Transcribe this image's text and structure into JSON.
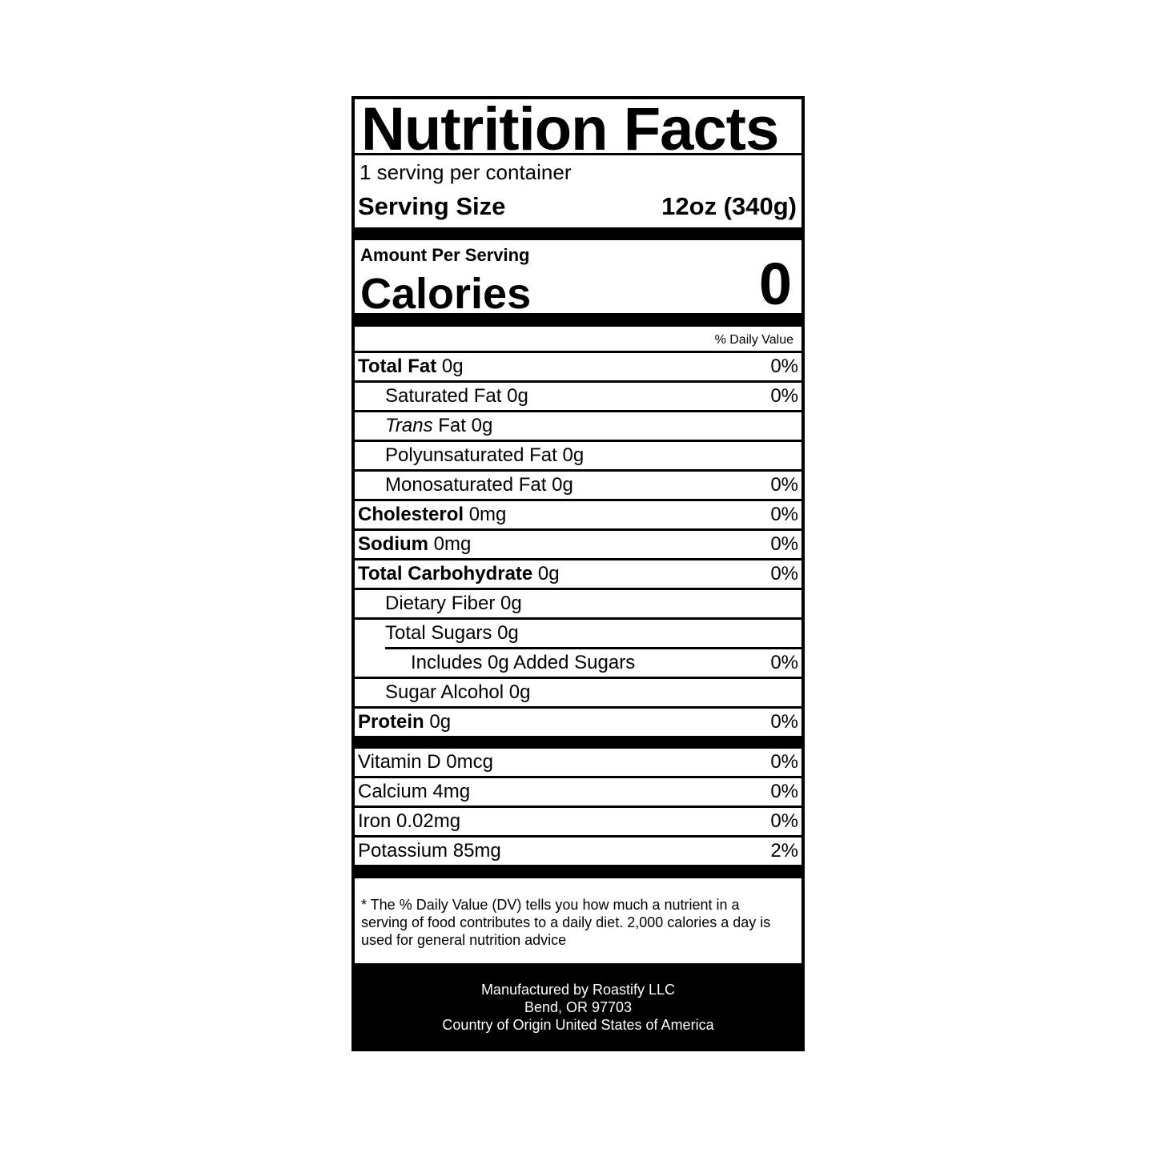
{
  "title": "Nutrition Facts",
  "servings_per_container": "1 serving per container",
  "serving_size": {
    "label": "Serving Size",
    "value": "12oz (340g)"
  },
  "amount_per_serving": "Amount Per Serving",
  "calories": {
    "label": "Calories",
    "value": "0"
  },
  "daily_value_header": "% Daily Value",
  "nutrients": [
    {
      "name": "Total Fat",
      "amount": "0g",
      "dv": "0%"
    },
    {
      "name": "Saturated Fat",
      "amount": "0g",
      "dv": "0%"
    },
    {
      "name": "Trans",
      "name2": "Fat",
      "amount": "0g",
      "dv": ""
    },
    {
      "name": "Polyunsaturated Fat",
      "amount": "0g",
      "dv": ""
    },
    {
      "name": "Monosaturated Fat",
      "amount": "0g",
      "dv": "0%"
    },
    {
      "name": "Cholesterol",
      "amount": "0mg",
      "dv": "0%"
    },
    {
      "name": "Sodium",
      "amount": "0mg",
      "dv": "0%"
    },
    {
      "name": "Total Carbohydrate",
      "amount": "0g",
      "dv": "0%"
    },
    {
      "name": "Dietary Fiber",
      "amount": "0g",
      "dv": ""
    },
    {
      "name": "Total Sugars",
      "amount": "0g",
      "dv": ""
    },
    {
      "name": "Includes 0g Added Sugars",
      "amount": "",
      "dv": "0%"
    },
    {
      "name": "Sugar Alcohol",
      "amount": "0g",
      "dv": ""
    },
    {
      "name": "Protein",
      "amount": "0g",
      "dv": "0%"
    }
  ],
  "vitamins": [
    {
      "name": "Vitamin D",
      "amount": "0mcg",
      "dv": "0%"
    },
    {
      "name": "Calcium",
      "amount": "4mg",
      "dv": "0%"
    },
    {
      "name": "Iron",
      "amount": "0.02mg",
      "dv": "0%"
    },
    {
      "name": "Potassium",
      "amount": "85mg",
      "dv": "2%"
    }
  ],
  "footnote": "* The % Daily Value (DV) tells you how much a nutrient in a serving of food contributes to a daily diet. 2,000 calories a day is used for general nutrition advice",
  "manufacturer": [
    "Manufactured by Roastify LLC",
    "Bend, OR 97703",
    "Country of Origin United States of America"
  ]
}
